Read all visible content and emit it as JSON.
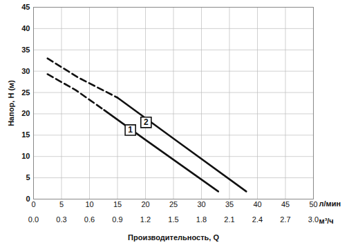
{
  "chart_data": {
    "type": "line",
    "ylabel": "Напор, H (м)",
    "xlabel": "л/мин",
    "x2label": "м³/ч",
    "x_title": "Производительность, Q",
    "xlim": [
      0,
      50
    ],
    "xticks": [
      0,
      5,
      10,
      15,
      20,
      25,
      30,
      35,
      40,
      45,
      50
    ],
    "x2lim": [
      0,
      3
    ],
    "x2ticks": [
      {
        "value": 0,
        "label": "0.0"
      },
      0.3,
      0.6,
      0.9,
      1.2,
      1.5,
      1.8,
      2.1,
      2.4,
      2.7,
      {
        "value": 3,
        "label": "3.0"
      }
    ],
    "ylim": [
      0,
      45
    ],
    "yticks": [
      0,
      5,
      10,
      15,
      20,
      25,
      30,
      35,
      40,
      45
    ],
    "grid": true,
    "series": [
      {
        "name": "1",
        "color": "#111111",
        "line_style": "dashed",
        "x": [
          2.5,
          7.5,
          12.6
        ],
        "values": [
          29.3,
          25.6,
          20.9
        ]
      },
      {
        "name": "1",
        "color": "#111111",
        "line_style": "solid",
        "x": [
          12.6,
          20,
          33
        ],
        "values": [
          20.9,
          13.9,
          1.8
        ]
      },
      {
        "name": "2",
        "color": "#111111",
        "line_style": "dashed",
        "x": [
          2.5,
          8,
          15
        ],
        "values": [
          33,
          28.5,
          23.8
        ]
      },
      {
        "name": "2",
        "color": "#111111",
        "line_style": "solid",
        "x": [
          15,
          25,
          38
        ],
        "values": [
          23.8,
          14.2,
          1.8
        ]
      }
    ],
    "annotations": [
      {
        "text": "1",
        "x": 17.3,
        "y": 16.2
      },
      {
        "text": "2",
        "x": 20.1,
        "y": 18
      }
    ]
  }
}
